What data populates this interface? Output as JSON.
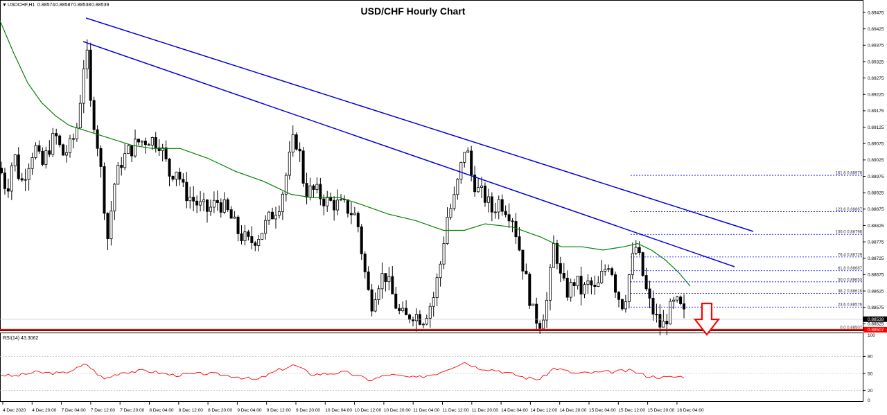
{
  "chart_data": {
    "type": "candlestick",
    "title": "USD/CHF Hourly Chart",
    "symbol_info": {
      "symbol": "USDCHF,H1",
      "values": [
        "0.88574",
        "0.88587",
        "0.88538",
        "0.88539"
      ]
    },
    "indicator_label": "RSI(14) 43.3062",
    "price_axis": {
      "range": [
        0.88475,
        0.89475
      ],
      "ticks": [
        "0.89475",
        "0.89425",
        "0.89375",
        "0.89325",
        "0.89275",
        "0.89225",
        "0.89175",
        "0.89125",
        "0.89075",
        "0.89025",
        "0.88975",
        "0.88925",
        "0.88875",
        "0.88825",
        "0.88775",
        "0.88725",
        "0.88675",
        "0.88625",
        "0.88575",
        "0.88525",
        "0.88475"
      ],
      "current_price": "0.88539",
      "support_label": "0.88507"
    },
    "rsi_axis": {
      "range": [
        0,
        100
      ],
      "ticks": [
        "100",
        "80",
        "50",
        "20",
        "0"
      ]
    },
    "time_axis_labels": [
      "4 Dec 2020",
      "4 Dec 20:00",
      "7 Dec 04:00",
      "7 Dec 12:00",
      "7 Dec 20:00",
      "8 Dec 04:00",
      "8 Dec 12:00",
      "8 Dec 20:00",
      "9 Dec 04:00",
      "9 Dec 12:00",
      "9 Dec 20:00",
      "10 Dec 04:00",
      "10 Dec 12:00",
      "10 Dec 20:00",
      "11 Dec 04:00",
      "11 Dec 12:00",
      "11 Dec 20:00",
      "14 Dec 04:00",
      "14 Dec 12:00",
      "14 Dec 20:00",
      "15 Dec 04:00",
      "15 Dec 12:00",
      "15 Dec 20:00",
      "16 Dec 04:00"
    ],
    "fibonacci_levels": [
      {
        "label": "161.8 0.88978",
        "price": 0.88978
      },
      {
        "label": "123.6 0.88867",
        "price": 0.88867
      },
      {
        "label": "100.0 0.88798",
        "price": 0.88798
      },
      {
        "label": "76.4 0.88729",
        "price": 0.88729
      },
      {
        "label": "61.8 0.88687",
        "price": 0.88687
      },
      {
        "label": "50.0 0.88653",
        "price": 0.88653
      },
      {
        "label": "38.2 0.88618",
        "price": 0.88618
      },
      {
        "label": "23.6 0.88576",
        "price": 0.88576
      },
      {
        "label": "0.0 0.88507",
        "price": 0.88507
      }
    ],
    "colors": {
      "candle": "#000000",
      "trendline": "#0000dd",
      "moving_average": "#008000",
      "support_line": "#ff0000",
      "fib": "#0000ff",
      "rsi": "#ff0000",
      "arrow": "#ff0000"
    }
  }
}
